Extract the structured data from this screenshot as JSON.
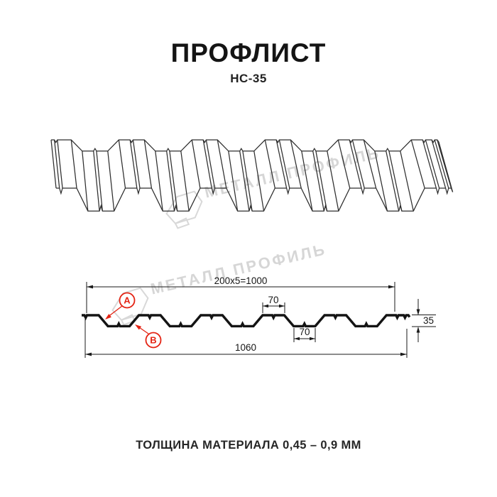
{
  "header": {
    "title": "ПРОФЛИСТ",
    "subtitle": "НС-35"
  },
  "watermark": {
    "text": "МЕТАЛЛ ПРОФИЛЬ"
  },
  "cross_section": {
    "dim_working_width": "200x5=1000",
    "dim_crest_width": "70",
    "dim_trough_width": "70",
    "dim_height": "35",
    "dim_overall_width": "1060",
    "callout_a": "A",
    "callout_b": "B"
  },
  "footer": {
    "thickness": "ТОЛЩИНА МАТЕРИАЛА 0,45 – 0,9 ММ"
  },
  "colors": {
    "accent_red": "#e42313",
    "line": "#1a1a1a",
    "watermark_gray": "#d6d6d6"
  }
}
